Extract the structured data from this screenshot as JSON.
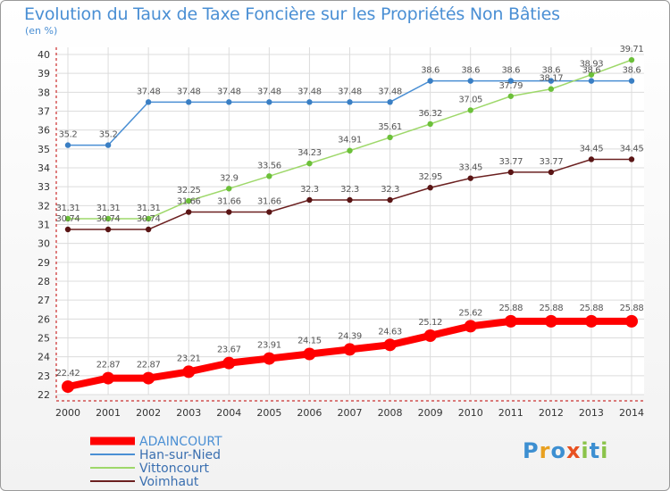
{
  "header": {
    "title": "Evolution du Taux de Taxe Foncière sur les Propriétés Non Bâties",
    "unit": "(en %)"
  },
  "logo": {
    "text": "Proxiti",
    "colors": [
      "#3d8fd1",
      "#e8a020",
      "#3d8fd1",
      "#e85020",
      "#8bc34a",
      "#3d8fd1",
      "#8bc34a"
    ]
  },
  "chart_data": {
    "type": "line",
    "x": [
      2000,
      2001,
      2002,
      2003,
      2004,
      2005,
      2006,
      2007,
      2008,
      2009,
      2010,
      2011,
      2012,
      2013,
      2014
    ],
    "ylim": [
      22,
      40
    ],
    "yticks": [
      22,
      23,
      24,
      25,
      26,
      27,
      28,
      29,
      30,
      31,
      32,
      33,
      34,
      35,
      36,
      37,
      38,
      39,
      40
    ],
    "grid": true,
    "legend_position": "bottom-left",
    "series": [
      {
        "name": "ADAINCOURT",
        "color": "#ff0000",
        "emphasis": true,
        "values": [
          22.42,
          22.87,
          22.87,
          23.21,
          23.67,
          23.91,
          24.15,
          24.39,
          24.63,
          25.12,
          25.62,
          25.88,
          25.88,
          25.88,
          25.88
        ],
        "labels": [
          "22.42",
          "22.87",
          "22.87",
          "23.21",
          "23.67",
          "23.91",
          "24.15",
          "24.39",
          "24.63",
          "25.12",
          "25.62",
          "25.88",
          "25.88",
          "25.88",
          "25.88"
        ]
      },
      {
        "name": "Han-sur-Nied",
        "color": "#4a8fd4",
        "marker": "#3a7fc4",
        "values": [
          35.2,
          35.2,
          37.48,
          37.48,
          37.48,
          37.48,
          37.48,
          37.48,
          37.48,
          38.6,
          38.6,
          38.6,
          38.6,
          38.6,
          38.6
        ],
        "labels": [
          "35.2",
          "35.2",
          "37.48",
          "37.48",
          "37.48",
          "37.48",
          "37.48",
          "37.48",
          "37.48",
          "38.6",
          "38.6",
          "38.6",
          "38.6",
          "38.6",
          "38.6"
        ]
      },
      {
        "name": "Vittoncourt",
        "color": "#9ed86a",
        "marker": "#6cc03a",
        "values": [
          31.31,
          31.31,
          31.31,
          32.25,
          32.9,
          33.56,
          34.23,
          34.91,
          35.61,
          36.32,
          37.05,
          37.79,
          38.17,
          38.93,
          39.71
        ],
        "labels": [
          "31.31",
          "31.31",
          "31.31",
          "32.25",
          "32.9",
          "33.56",
          "34.23",
          "34.91",
          "35.61",
          "36.32",
          "37.05",
          "37.79",
          "38.17",
          "38.93",
          "39.71"
        ]
      },
      {
        "name": "Voimhaut",
        "color": "#6b2020",
        "marker": "#5a1515",
        "values": [
          30.74,
          30.74,
          30.74,
          31.66,
          31.66,
          31.66,
          32.3,
          32.3,
          32.3,
          32.95,
          33.45,
          33.77,
          33.77,
          34.45,
          34.45
        ],
        "labels": [
          "30.74",
          "30.74",
          "30.74",
          "31.66",
          "31.66",
          "31.66",
          "32.3",
          "32.3",
          "32.3",
          "32.95",
          "33.45",
          "33.77",
          "33.77",
          "34.45",
          "34.45"
        ]
      }
    ]
  }
}
